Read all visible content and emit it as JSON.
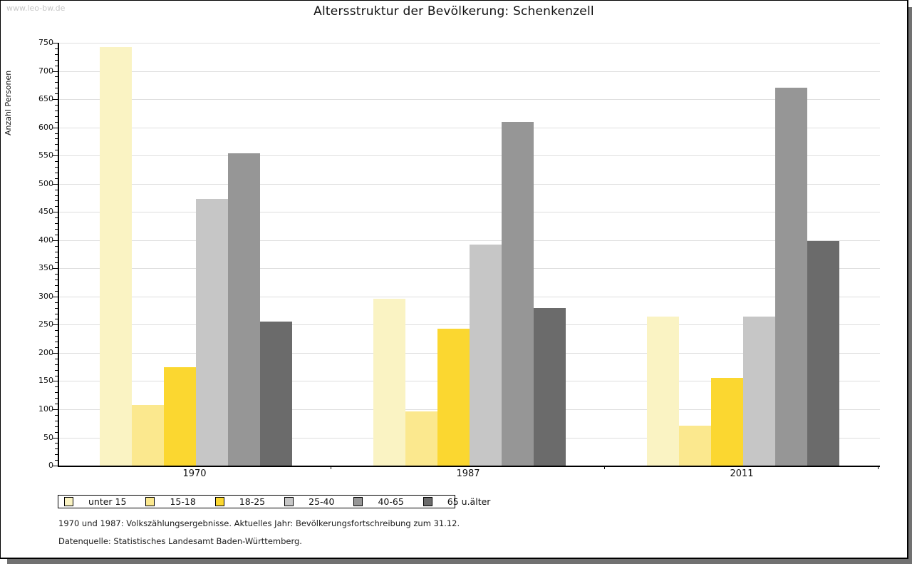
{
  "watermark": "www.leo-bw.de",
  "title": "Altersstruktur der Bevölkerung: Schenkenzell",
  "chart_data": {
    "type": "bar",
    "title": "Altersstruktur der Bevölkerung: Schenkenzell",
    "xlabel": "",
    "ylabel": "Anzahl Personen",
    "ylim": [
      0,
      750
    ],
    "yticks": [
      0,
      50,
      100,
      150,
      200,
      250,
      300,
      350,
      400,
      450,
      500,
      550,
      600,
      650,
      700,
      750
    ],
    "grid": true,
    "legend_position": "bottom",
    "categories": [
      "1970",
      "1987",
      "2011"
    ],
    "series": [
      {
        "name": "unter 15",
        "color": "#faf3c3",
        "values": [
          742,
          296,
          264
        ]
      },
      {
        "name": "15-18",
        "color": "#fbe88e",
        "values": [
          107,
          96,
          71
        ]
      },
      {
        "name": "18-25",
        "color": "#fbd730",
        "values": [
          174,
          243,
          155
        ]
      },
      {
        "name": "25-40",
        "color": "#c6c6c6",
        "values": [
          473,
          392,
          264
        ]
      },
      {
        "name": "40-65",
        "color": "#969696",
        "values": [
          554,
          610,
          670
        ]
      },
      {
        "name": "65 u.älter",
        "color": "#6b6b6b",
        "values": [
          255,
          279,
          399
        ]
      }
    ]
  },
  "footer": {
    "line1": "1970 und 1987: Volkszählungsergebnisse. Aktuelles Jahr: Bevölkerungsfortschreibung zum 31.12.",
    "line2": "Datenquelle: Statistisches Landesamt Baden-Württemberg."
  },
  "colors": {
    "gridline": "#dedede",
    "axis": "#000000",
    "shadow": "#717171",
    "watermark_text": "#c6c6c6"
  }
}
